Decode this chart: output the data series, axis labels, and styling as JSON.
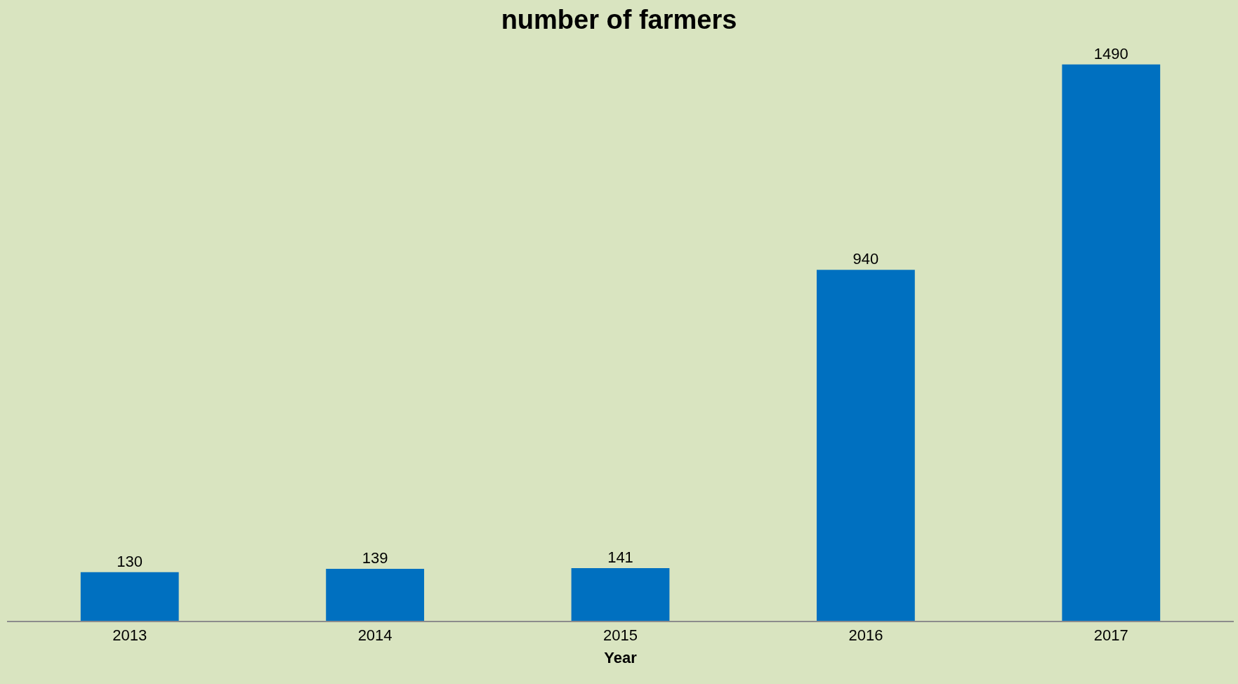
{
  "chart_data": {
    "type": "bar",
    "title": "number of farmers",
    "xlabel": "Year",
    "categories": [
      "2013",
      "2014",
      "2015",
      "2016",
      "2017"
    ],
    "values": [
      130,
      139,
      141,
      940,
      1490
    ],
    "color": "#0070c0",
    "data_labels": true,
    "tick_labels": "x",
    "grid": false,
    "legend": false
  }
}
